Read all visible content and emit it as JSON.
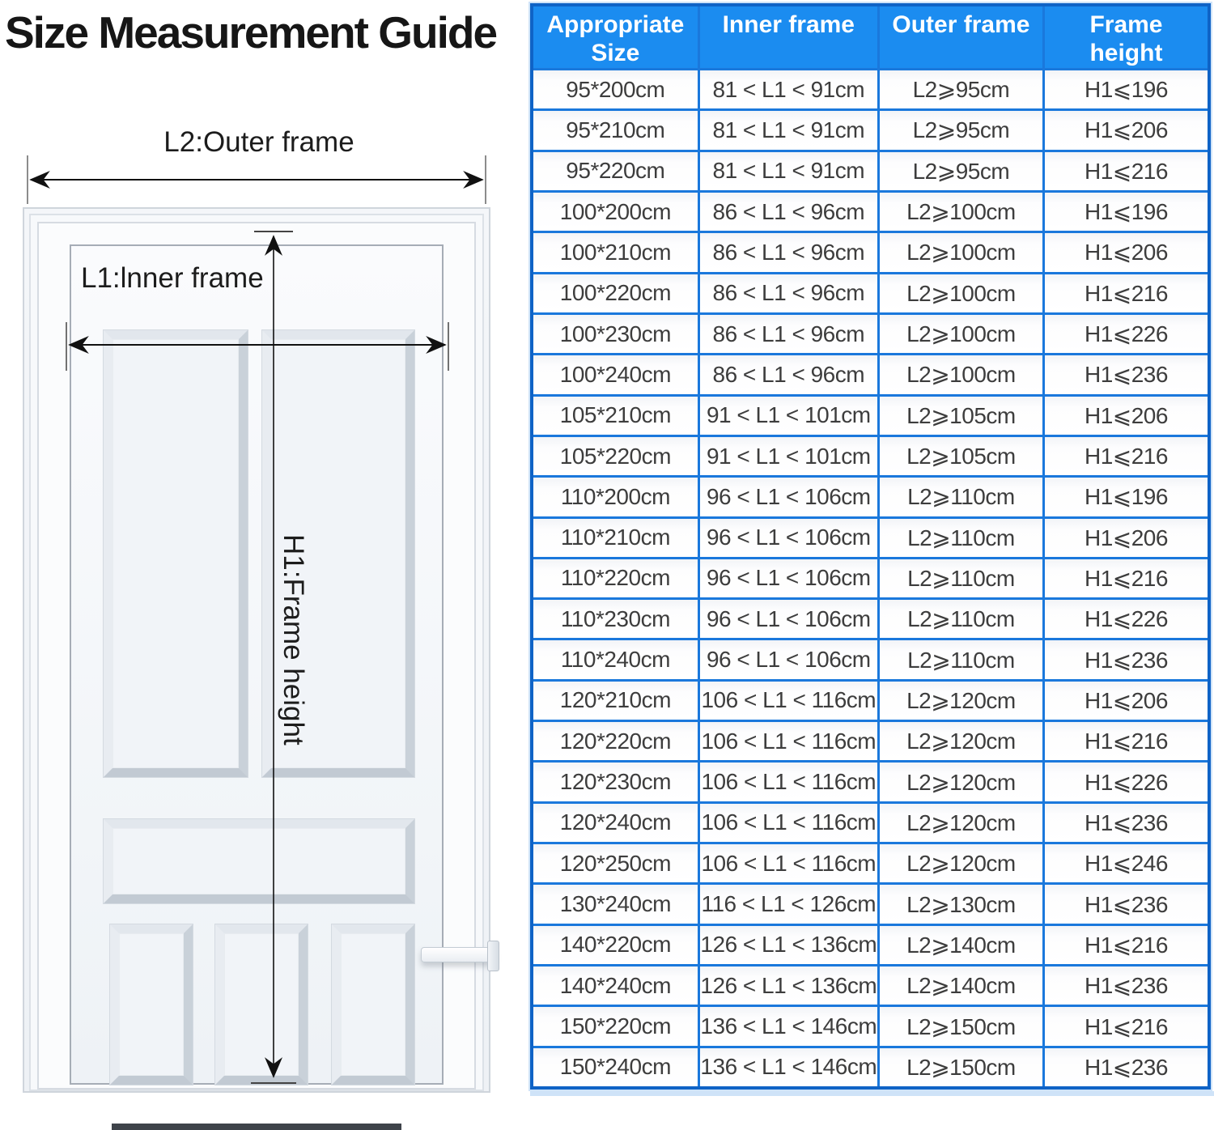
{
  "title": "Size Measurement Guide",
  "diagram": {
    "l2_label": "L2:Outer frame",
    "l1_label": "L1:lnner frame",
    "h1_label": "H1:Frame height"
  },
  "table": {
    "columns": [
      "Appropriate Size",
      "Inner frame",
      "Outer frame",
      "Frame height"
    ],
    "rows": [
      [
        "95*200cm",
        "81 < L1 < 91cm",
        "L2⩾95cm",
        "H1⩽196"
      ],
      [
        "95*210cm",
        "81 < L1 < 91cm",
        "L2⩾95cm",
        "H1⩽206"
      ],
      [
        "95*220cm",
        "81 < L1 < 91cm",
        "L2⩾95cm",
        "H1⩽216"
      ],
      [
        "100*200cm",
        "86 < L1 < 96cm",
        "L2⩾100cm",
        "H1⩽196"
      ],
      [
        "100*210cm",
        "86 < L1 < 96cm",
        "L2⩾100cm",
        "H1⩽206"
      ],
      [
        "100*220cm",
        "86 < L1 < 96cm",
        "L2⩾100cm",
        "H1⩽216"
      ],
      [
        "100*230cm",
        "86 < L1 < 96cm",
        "L2⩾100cm",
        "H1⩽226"
      ],
      [
        "100*240cm",
        "86 < L1 < 96cm",
        "L2⩾100cm",
        "H1⩽236"
      ],
      [
        "105*210cm",
        "91 < L1 < 101cm",
        "L2⩾105cm",
        "H1⩽206"
      ],
      [
        "105*220cm",
        "91 < L1 < 101cm",
        "L2⩾105cm",
        "H1⩽216"
      ],
      [
        "110*200cm",
        "96 < L1 < 106cm",
        "L2⩾110cm",
        "H1⩽196"
      ],
      [
        "110*210cm",
        "96 < L1 < 106cm",
        "L2⩾110cm",
        "H1⩽206"
      ],
      [
        "110*220cm",
        "96 < L1 < 106cm",
        "L2⩾110cm",
        "H1⩽216"
      ],
      [
        "110*230cm",
        "96 < L1 < 106cm",
        "L2⩾110cm",
        "H1⩽226"
      ],
      [
        "110*240cm",
        "96 < L1 < 106cm",
        "L2⩾110cm",
        "H1⩽236"
      ],
      [
        "120*210cm",
        "106 < L1 < 116cm",
        "L2⩾120cm",
        "H1⩽206"
      ],
      [
        "120*220cm",
        "106 < L1 < 116cm",
        "L2⩾120cm",
        "H1⩽216"
      ],
      [
        "120*230cm",
        "106 < L1 < 116cm",
        "L2⩾120cm",
        "H1⩽226"
      ],
      [
        "120*240cm",
        "106 < L1 < 116cm",
        "L2⩾120cm",
        "H1⩽236"
      ],
      [
        "120*250cm",
        "106 < L1 < 116cm",
        "L2⩾120cm",
        "H1⩽246"
      ],
      [
        "130*240cm",
        "116 < L1 < 126cm",
        "L2⩾130cm",
        "H1⩽236"
      ],
      [
        "140*220cm",
        "126 < L1 < 136cm",
        "L2⩾140cm",
        "H1⩽216"
      ],
      [
        "140*240cm",
        "126 < L1 < 136cm",
        "L2⩾140cm",
        "H1⩽236"
      ],
      [
        "150*220cm",
        "136 < L1 < 146cm",
        "L2⩾150cm",
        "H1⩽216"
      ],
      [
        "150*240cm",
        "136 < L1 < 146cm",
        "L2⩾150cm",
        "H1⩽236"
      ]
    ]
  },
  "colors": {
    "header_bg": "#1b8cf0",
    "table_border": "#0f63c6",
    "row_separator": "#1a78dc",
    "cell_text": "#3d3d3d"
  }
}
